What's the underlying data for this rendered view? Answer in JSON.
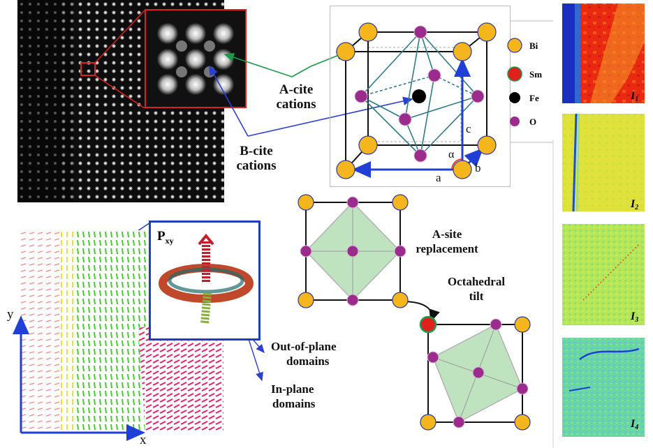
{
  "stem": {
    "a_site_label": "A-cite",
    "a_site_label2": "cations",
    "b_site_label": "B-cite",
    "b_site_label2": "cations"
  },
  "unit_cell": {
    "legend": [
      {
        "label": "Bi",
        "color": "#f5b51d"
      },
      {
        "label": "Sm",
        "color": "#e0201c"
      },
      {
        "label": "Fe",
        "color": "#000000"
      },
      {
        "label": "O",
        "color": "#9b2c8e"
      }
    ],
    "axis_a": "a",
    "axis_b": "b",
    "axis_c": "c",
    "angle": "α"
  },
  "polarization": {
    "inset_label": "P",
    "inset_sub": "xy",
    "axis_x": "x",
    "axis_y": "y",
    "out_of_plane": "Out-of-plane",
    "out_of_plane2": "domains",
    "in_plane": "In-plane",
    "in_plane2": "domains"
  },
  "mechanisms": {
    "a_site": "A-site",
    "a_site2": "replacement",
    "tilt": "Octahedral",
    "tilt2": "tilt"
  },
  "maps": [
    {
      "label": "I",
      "sub": "1"
    },
    {
      "label": "I",
      "sub": "2"
    },
    {
      "label": "I",
      "sub": "3"
    },
    {
      "label": "I",
      "sub": "4"
    }
  ]
}
